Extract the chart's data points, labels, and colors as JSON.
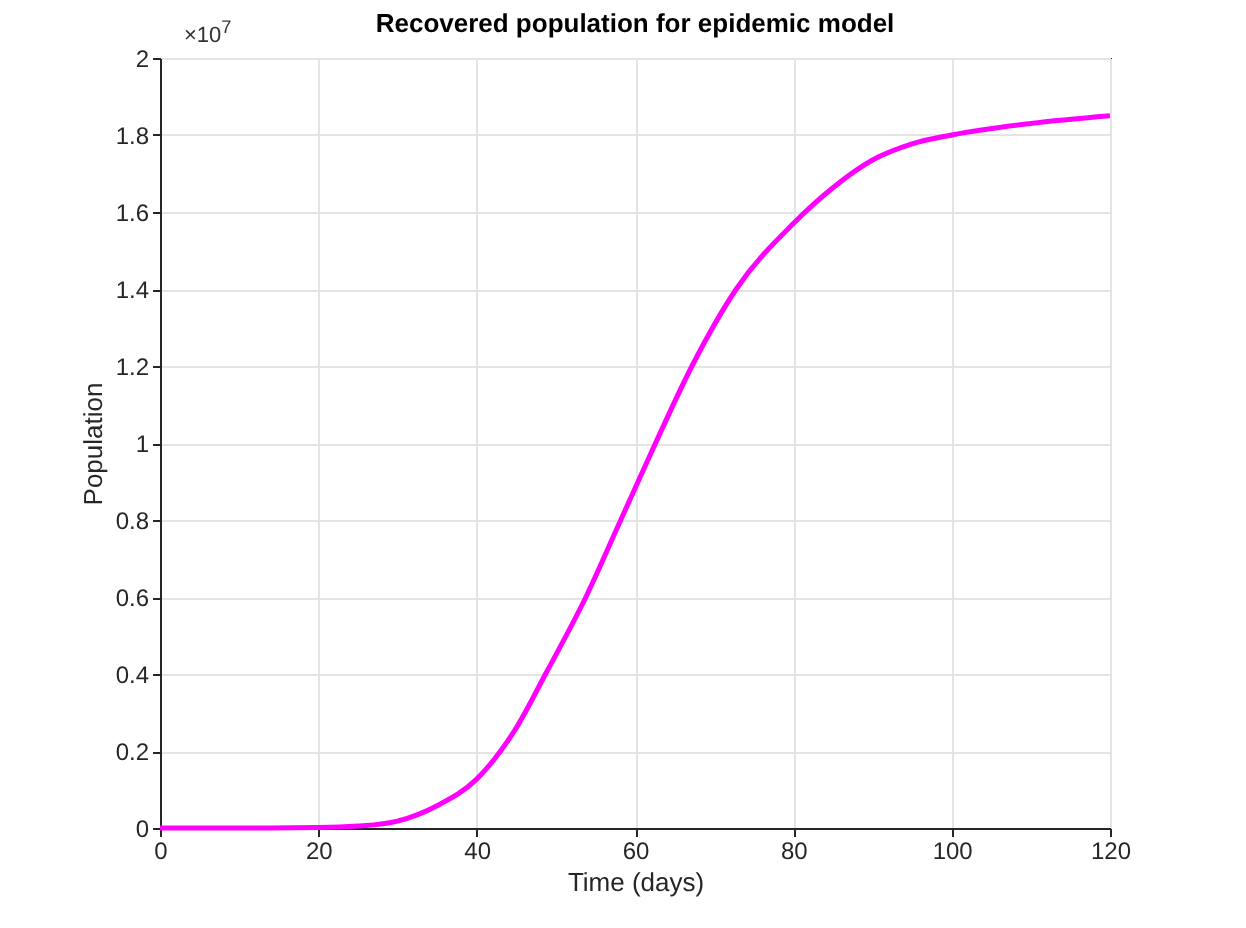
{
  "chart_data": {
    "type": "line",
    "title": "Recovered population for epidemic model",
    "xlabel": "Time (days)",
    "ylabel": "Population",
    "annotations": [
      "×10$^{7}$"
    ],
    "x": [
      0,
      10,
      20,
      25,
      30,
      35,
      40,
      45,
      48.7,
      53.8,
      58.2,
      62.6,
      67.2,
      72.8,
      80,
      85,
      90,
      95,
      100,
      110,
      120
    ],
    "series": [
      {
        "color": "#ff00ff",
        "values": [
          0,
          0,
          0.001,
          0.005,
          0.018,
          0.058,
          0.127,
          0.26,
          0.4,
          0.6,
          0.8,
          1.0,
          1.2,
          1.4,
          1.57,
          1.663,
          1.735,
          1.777,
          1.8,
          1.83,
          1.85
        ]
      }
    ],
    "xlim": [
      0,
      120
    ],
    "xticks": [
      0,
      20,
      40,
      60,
      80,
      100,
      120
    ],
    "ylim": [
      0,
      2
    ],
    "yticks": [
      0,
      0.2,
      0.4,
      0.6,
      0.8,
      1,
      1.2,
      1.4,
      1.6,
      1.8,
      2
    ],
    "grid": true,
    "marker": "none",
    "line_style": "solid"
  }
}
